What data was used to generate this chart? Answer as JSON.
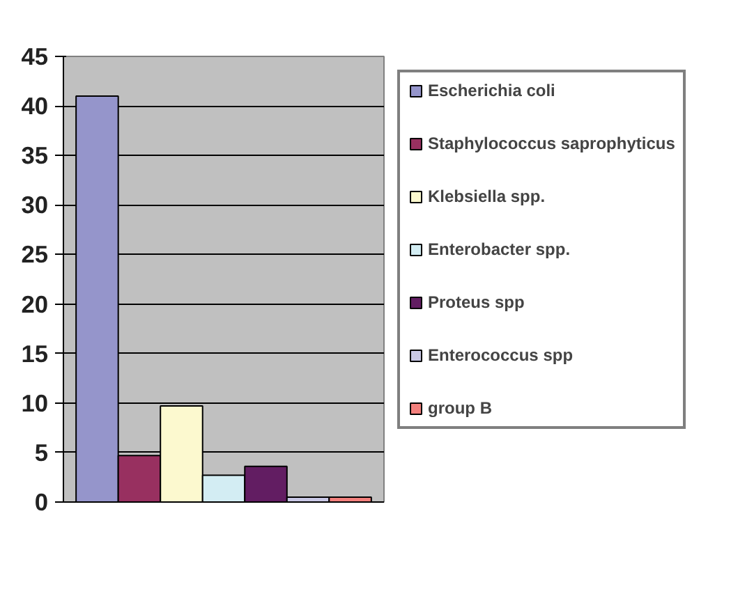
{
  "chart_data": {
    "type": "bar",
    "categories": [
      null,
      null,
      null,
      null,
      null,
      null,
      null
    ],
    "series": [
      {
        "name": "Escherichia coli",
        "color": "#9595cb",
        "values": [
          41,
          null,
          null,
          null,
          null,
          null,
          null
        ]
      },
      {
        "name": "Staphylococcus saprophyticus",
        "color": "#983060",
        "values": [
          null,
          4.7,
          null,
          null,
          null,
          null,
          null
        ]
      },
      {
        "name": "Klebsiella spp.",
        "color": "#fcf9cf",
        "values": [
          null,
          null,
          9.7,
          null,
          null,
          null,
          null
        ]
      },
      {
        "name": "Enterobacter spp.",
        "color": "#d3edf3",
        "values": [
          null,
          null,
          null,
          2.7,
          null,
          null,
          null
        ]
      },
      {
        "name": "Proteus spp",
        "color": "#621d62",
        "values": [
          null,
          null,
          null,
          null,
          3.6,
          null,
          null
        ]
      },
      {
        "name": "Enterococcus spp",
        "color": "#c9c8e5",
        "values": [
          null,
          null,
          null,
          null,
          null,
          0.5,
          null
        ]
      },
      {
        "name": "group B",
        "color": "#f3807d",
        "values": [
          null,
          null,
          null,
          null,
          null,
          null,
          0.5
        ]
      }
    ],
    "ylim": [
      0,
      45
    ],
    "yticks": [
      0,
      5,
      10,
      15,
      20,
      25,
      30,
      35,
      40,
      45
    ],
    "grid": "y",
    "legend": "right",
    "tick_labels": "y"
  }
}
